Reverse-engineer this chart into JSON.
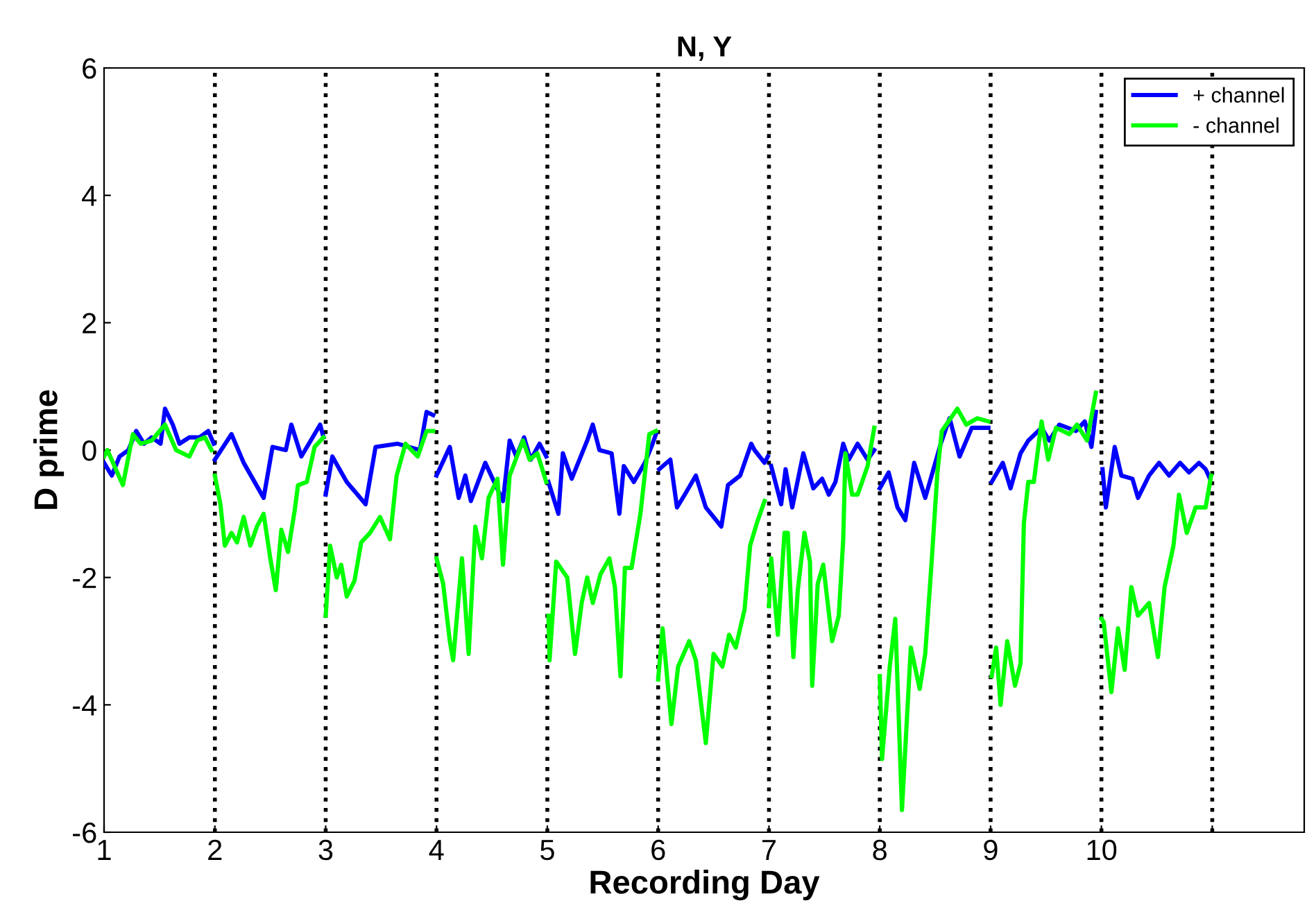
{
  "chart_data": {
    "type": "line",
    "title": "N, Y",
    "xlabel": "Recording Day",
    "ylabel": "D prime",
    "xlim": [
      1,
      11.83
    ],
    "ylim": [
      -6,
      6
    ],
    "yticks": [
      -6,
      -4,
      -2,
      0,
      2,
      4,
      6
    ],
    "xticks": [
      1,
      2,
      3,
      4,
      5,
      6,
      7,
      8,
      9,
      10,
      {
        "value": 11,
        "label": null
      }
    ],
    "ref_lines": [
      {
        "axis": "x",
        "value": 2,
        "color": "#000000",
        "line_style": "dotted"
      },
      {
        "axis": "x",
        "value": 3,
        "color": "#000000",
        "line_style": "dotted"
      },
      {
        "axis": "x",
        "value": 4,
        "color": "#000000",
        "line_style": "dotted"
      },
      {
        "axis": "x",
        "value": 5,
        "color": "#000000",
        "line_style": "dotted"
      },
      {
        "axis": "x",
        "value": 6,
        "color": "#000000",
        "line_style": "dotted"
      },
      {
        "axis": "x",
        "value": 7,
        "color": "#000000",
        "line_style": "dotted"
      },
      {
        "axis": "x",
        "value": 8,
        "color": "#000000",
        "line_style": "dotted"
      },
      {
        "axis": "x",
        "value": 9,
        "color": "#000000",
        "line_style": "dotted"
      },
      {
        "axis": "x",
        "value": 10,
        "color": "#000000",
        "line_style": "dotted"
      },
      {
        "axis": "x",
        "value": 11,
        "color": "#000000",
        "line_style": "dotted"
      }
    ],
    "legend": "top right",
    "grid": false,
    "line_style": "solid",
    "marker": "none",
    "series": [
      {
        "name": "+ channel",
        "color": "#0000ff",
        "x": [
          1.0,
          1.07,
          1.14,
          1.22,
          1.29,
          1.36,
          1.43,
          1.51,
          1.55,
          1.62,
          1.68,
          1.77,
          1.86,
          1.94,
          1.99,
          1.995,
          2.0,
          2.15,
          2.26,
          2.44,
          2.52,
          2.64,
          2.69,
          2.78,
          2.95,
          2.98,
          2.99,
          3.0,
          3.06,
          3.19,
          3.36,
          3.45,
          3.65,
          3.85,
          3.91,
          3.97,
          3.985,
          4.0,
          4.12,
          4.2,
          4.26,
          4.31,
          4.44,
          4.52,
          4.6,
          4.66,
          4.72,
          4.79,
          4.85,
          4.93,
          4.99,
          5.0,
          5.01,
          5.1,
          5.14,
          5.22,
          5.36,
          5.41,
          5.47,
          5.58,
          5.65,
          5.69,
          5.78,
          5.88,
          5.95,
          5.98,
          6.0,
          6.01,
          6.11,
          6.17,
          6.24,
          6.34,
          6.43,
          6.57,
          6.63,
          6.74,
          6.84,
          6.87,
          6.96,
          6.99,
          7.0,
          7.02,
          7.11,
          7.15,
          7.21,
          7.31,
          7.4,
          7.48,
          7.54,
          7.6,
          7.67,
          7.72,
          7.8,
          7.89,
          7.95,
          7.975,
          8.0,
          8.08,
          8.16,
          8.23,
          8.31,
          8.41,
          8.55,
          8.63,
          8.72,
          8.83,
          8.98,
          9.0,
          9.01,
          9.11,
          9.18,
          9.27,
          9.34,
          9.46,
          9.53,
          9.62,
          9.77,
          9.85,
          9.91,
          9.95,
          10.0,
          10.01,
          10.04,
          10.12,
          10.18,
          10.28,
          10.33,
          10.43,
          10.52,
          10.61,
          10.71,
          10.79,
          10.88,
          10.94,
          10.98
        ],
        "values": [
          -0.2,
          -0.4,
          -0.1,
          0.0,
          0.3,
          0.1,
          0.2,
          0.1,
          0.65,
          0.4,
          0.1,
          0.2,
          0.2,
          0.3,
          0.1,
          null,
          -0.15,
          0.25,
          -0.2,
          -0.75,
          0.05,
          0.0,
          0.4,
          -0.1,
          0.4,
          0.2,
          null,
          -0.7,
          -0.1,
          -0.5,
          -0.85,
          0.05,
          0.1,
          0.0,
          0.6,
          0.55,
          null,
          -0.4,
          0.05,
          -0.75,
          -0.4,
          -0.8,
          -0.2,
          -0.5,
          -0.8,
          0.15,
          -0.1,
          0.2,
          -0.15,
          0.1,
          -0.1,
          null,
          -0.5,
          -1.0,
          -0.05,
          -0.45,
          0.15,
          0.4,
          0.0,
          -0.05,
          -1.0,
          -0.25,
          -0.5,
          -0.2,
          0.1,
          0.25,
          null,
          -0.3,
          -0.15,
          -0.9,
          -0.7,
          -0.4,
          -0.9,
          -1.2,
          -0.55,
          -0.4,
          0.1,
          0.0,
          -0.2,
          -0.1,
          null,
          -0.25,
          -0.85,
          -0.3,
          -0.9,
          -0.05,
          -0.6,
          -0.45,
          -0.7,
          -0.5,
          0.1,
          -0.15,
          0.1,
          -0.15,
          0.0,
          null,
          -0.6,
          -0.35,
          -0.9,
          -1.1,
          -0.2,
          -0.75,
          0.1,
          0.5,
          -0.1,
          0.35,
          0.35,
          null,
          -0.5,
          -0.2,
          -0.6,
          -0.05,
          0.15,
          0.35,
          0.15,
          0.4,
          0.3,
          0.45,
          0.05,
          0.6,
          null,
          -0.3,
          -0.9,
          0.05,
          -0.4,
          -0.45,
          -0.75,
          -0.4,
          -0.2,
          -0.4,
          -0.2,
          -0.35,
          -0.2,
          -0.3,
          -0.45
        ]
      },
      {
        "name": "- channel",
        "color": "#00ff00",
        "x": [
          1.0,
          1.03,
          1.17,
          1.26,
          1.33,
          1.43,
          1.55,
          1.65,
          1.77,
          1.84,
          1.91,
          1.97,
          1.985,
          2.0,
          2.05,
          2.09,
          2.15,
          2.2,
          2.26,
          2.32,
          2.38,
          2.44,
          2.5,
          2.55,
          2.6,
          2.66,
          2.72,
          2.75,
          2.83,
          2.9,
          2.98,
          2.99,
          3.0,
          3.04,
          3.1,
          3.14,
          3.19,
          3.26,
          3.32,
          3.4,
          3.49,
          3.58,
          3.64,
          3.72,
          3.83,
          3.91,
          3.97,
          3.985,
          4.0,
          4.06,
          4.12,
          4.15,
          4.23,
          4.29,
          4.35,
          4.41,
          4.47,
          4.55,
          4.6,
          4.66,
          4.78,
          4.84,
          4.91,
          4.99,
          5.0,
          5.01,
          5.02,
          5.08,
          5.18,
          5.25,
          5.31,
          5.36,
          5.41,
          5.48,
          5.56,
          5.61,
          5.66,
          5.7,
          5.76,
          5.84,
          5.92,
          5.98,
          5.99,
          6.0,
          6.04,
          6.12,
          6.18,
          6.28,
          6.34,
          6.43,
          6.5,
          6.58,
          6.64,
          6.7,
          6.78,
          6.83,
          6.89,
          6.96,
          6.98,
          7.0,
          7.02,
          7.08,
          7.14,
          7.17,
          7.22,
          7.26,
          7.32,
          7.37,
          7.39,
          7.44,
          7.49,
          7.57,
          7.63,
          7.67,
          7.69,
          7.75,
          7.8,
          7.89,
          7.95,
          7.975,
          8.0,
          8.02,
          8.09,
          8.14,
          8.2,
          8.28,
          8.36,
          8.41,
          8.47,
          8.52,
          8.56,
          8.7,
          8.78,
          8.88,
          8.98,
          9.0,
          9.01,
          9.05,
          9.09,
          9.15,
          9.22,
          9.27,
          9.3,
          9.34,
          9.39,
          9.46,
          9.52,
          9.59,
          9.71,
          9.78,
          9.87,
          9.95,
          9.975,
          10.0,
          10.02,
          10.09,
          10.15,
          10.21,
          10.27,
          10.33,
          10.43,
          10.51,
          10.57,
          10.65,
          10.7,
          10.77,
          10.85,
          10.94,
          10.99
        ],
        "values": [
          -0.1,
          0.0,
          -0.55,
          0.25,
          0.1,
          0.15,
          0.4,
          0.0,
          -0.1,
          0.15,
          0.2,
          0.0,
          null,
          -0.4,
          -0.85,
          -1.5,
          -1.3,
          -1.45,
          -1.05,
          -1.5,
          -1.2,
          -1.0,
          -1.7,
          -2.2,
          -1.25,
          -1.6,
          -0.95,
          -0.55,
          -0.5,
          0.05,
          0.2,
          null,
          -2.6,
          -1.5,
          -2.0,
          -1.8,
          -2.3,
          -2.05,
          -1.45,
          -1.3,
          -1.05,
          -1.4,
          -0.4,
          0.1,
          -0.1,
          0.3,
          0.3,
          null,
          -1.7,
          -2.1,
          -3.0,
          -3.3,
          -1.7,
          -3.2,
          -1.2,
          -1.7,
          -0.75,
          -0.45,
          -1.8,
          -0.4,
          0.15,
          -0.15,
          -0.05,
          -0.5,
          null,
          -2.6,
          -3.3,
          -1.75,
          -2.0,
          -3.2,
          -2.4,
          -2.0,
          -2.4,
          -1.95,
          -1.7,
          -2.15,
          -3.55,
          -1.85,
          -1.85,
          -1.0,
          0.25,
          0.3,
          null,
          -3.6,
          -2.8,
          -4.3,
          -3.4,
          -3.0,
          -3.3,
          -4.6,
          -3.2,
          -3.4,
          -2.9,
          -3.1,
          -2.5,
          -1.5,
          -1.15,
          -0.8,
          null,
          -2.45,
          -1.7,
          -2.9,
          -1.3,
          -1.3,
          -3.25,
          -2.2,
          -1.3,
          -1.75,
          -3.7,
          -2.1,
          -1.8,
          -3.0,
          -2.6,
          -1.4,
          -0.05,
          -0.7,
          -0.7,
          -0.25,
          0.35,
          null,
          -3.55,
          -4.85,
          -3.4,
          -2.65,
          -5.65,
          -3.1,
          -3.75,
          -3.2,
          -1.7,
          -0.35,
          0.3,
          0.65,
          0.4,
          0.5,
          0.45,
          null,
          -3.55,
          -3.1,
          -4.0,
          -3.0,
          -3.7,
          -3.35,
          -1.15,
          -0.5,
          -0.5,
          0.45,
          -0.15,
          0.35,
          0.25,
          0.4,
          0.15,
          0.9,
          null,
          -2.65,
          -2.7,
          -3.8,
          -2.8,
          -3.45,
          -2.15,
          -2.6,
          -2.4,
          -3.25,
          -2.15,
          -1.5,
          -0.7,
          -1.3,
          -0.9,
          -0.9,
          -0.4
        ]
      }
    ]
  }
}
